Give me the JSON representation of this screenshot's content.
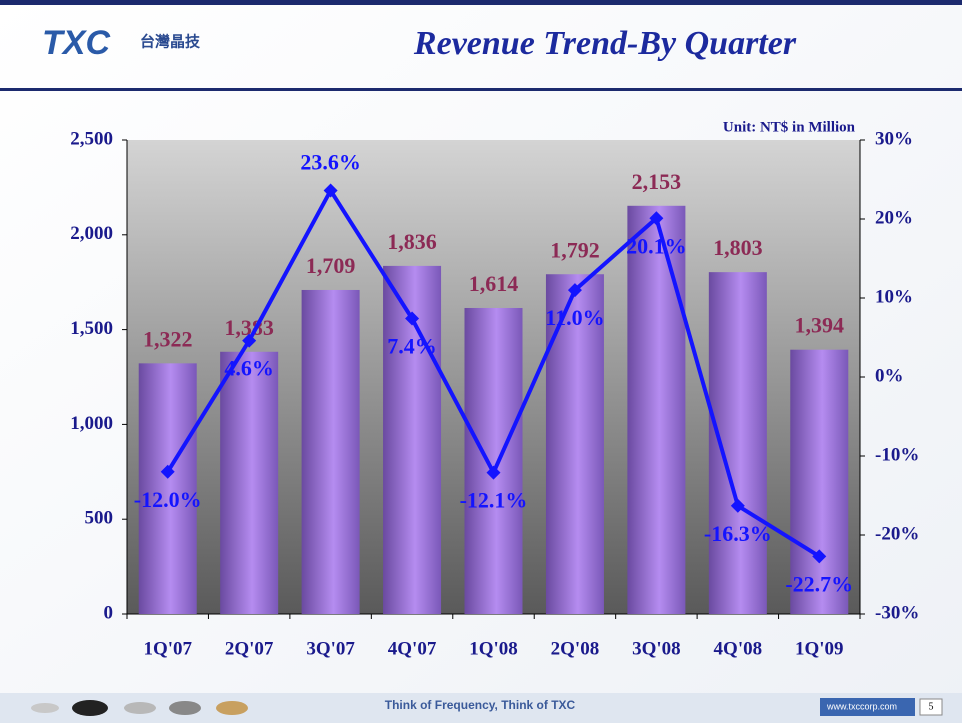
{
  "slide": {
    "logo": "TXC",
    "logo_cn": "台灣晶技",
    "footer": "Think of Frequency, Think of TXC",
    "website": "www.txccorp.com",
    "page_number": "5"
  },
  "chart_data": {
    "type": "bar-line",
    "title": "Revenue Trend-By Quarter",
    "annotation": "Unit: NT$ in Million",
    "categories": [
      "1Q'07",
      "2Q'07",
      "3Q'07",
      "4Q'07",
      "1Q'08",
      "2Q'08",
      "3Q'08",
      "4Q'08",
      "1Q'09"
    ],
    "series": [
      {
        "type": "bar",
        "color": "#b58cf0",
        "values": [
          1322,
          1383,
          1709,
          1836,
          1614,
          1792,
          2153,
          1803,
          1394
        ],
        "value_labels": [
          "1,322",
          "1,383",
          "1,709",
          "1,836",
          "1,614",
          "1,792",
          "2,153",
          "1,803",
          "1,394"
        ]
      },
      {
        "type": "line",
        "axis": "y2",
        "color": "#1414ff",
        "values": [
          -12.0,
          4.6,
          23.6,
          7.4,
          -12.1,
          11.0,
          20.1,
          -16.3,
          -22.7
        ],
        "value_labels": [
          "-12.0%",
          "4.6%",
          "23.6%",
          "7.4%",
          "-12.1%",
          "11.0%",
          "20.1%",
          "-16.3%",
          "-22.7%"
        ]
      }
    ],
    "ylim": [
      0,
      2500
    ],
    "yticks": [
      0,
      500,
      {
        "value": 1000,
        "label": "1,000"
      },
      {
        "value": 1500,
        "label": "1,500"
      },
      {
        "value": 2000,
        "label": "2,000"
      },
      {
        "value": 2500,
        "label": "2,500"
      }
    ],
    "y2lim": [
      -30,
      30
    ],
    "y2ticks": [
      {
        "value": -30,
        "label": "-30%"
      },
      {
        "value": -20,
        "label": "-20%"
      },
      {
        "value": -10,
        "label": "-10%"
      },
      {
        "value": 0,
        "label": "0%"
      },
      {
        "value": 10,
        "label": "10%"
      },
      {
        "value": 20,
        "label": "20%"
      },
      {
        "value": 30,
        "label": "30%"
      }
    ],
    "grid": false
  }
}
